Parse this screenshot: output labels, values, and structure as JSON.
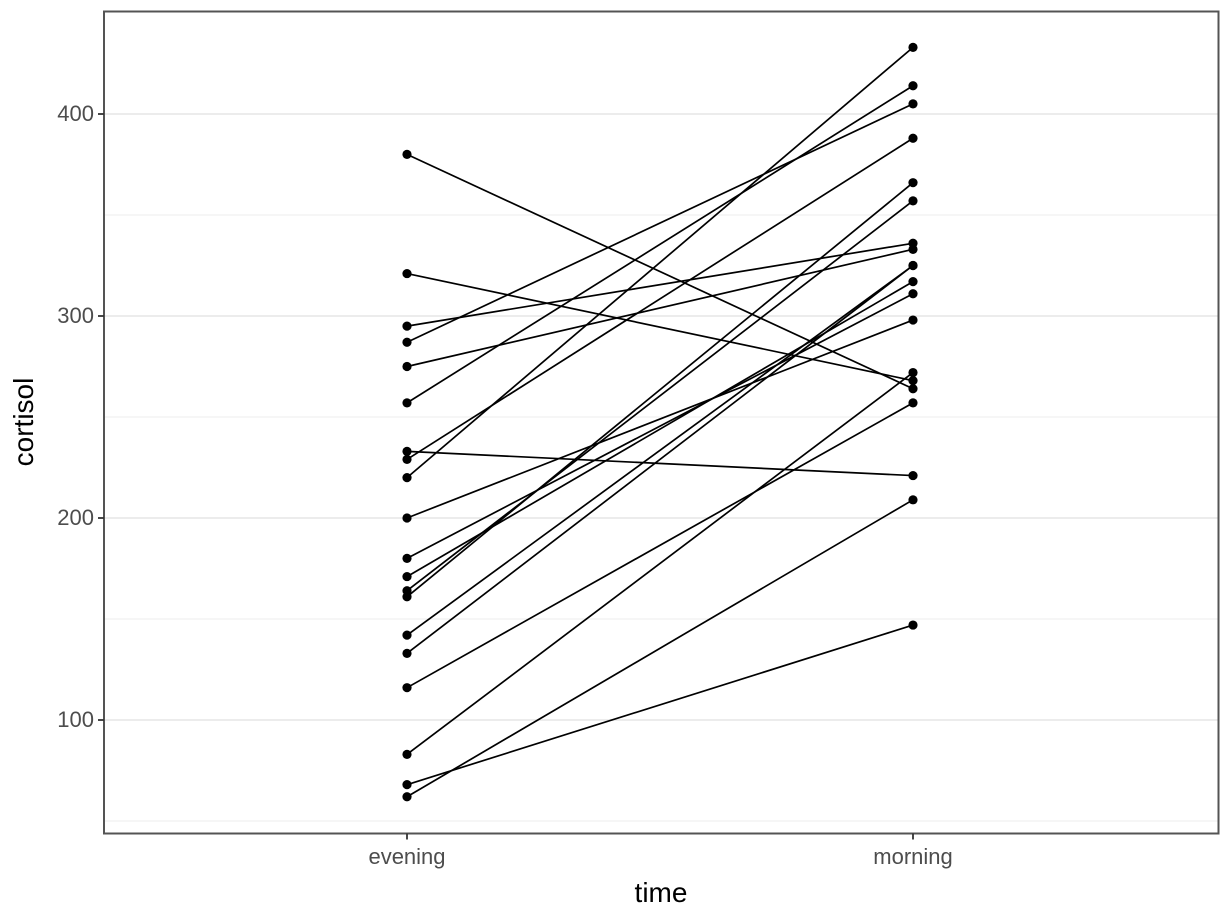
{
  "chart_data": {
    "type": "line",
    "subtype": "paired-observations-slopegraph",
    "title": "",
    "xlabel": "time",
    "ylabel": "cortisol",
    "categories": [
      "evening",
      "morning"
    ],
    "yticks": [
      100,
      200,
      300,
      400
    ],
    "yminor": [
      50,
      150,
      250,
      350
    ],
    "ylim": [
      43,
      451
    ],
    "grid": true,
    "legend": "none",
    "series": [
      {
        "name": "pair-01",
        "values": [
          380,
          264
        ]
      },
      {
        "name": "pair-02",
        "values": [
          321,
          268
        ]
      },
      {
        "name": "pair-03",
        "values": [
          295,
          336
        ]
      },
      {
        "name": "pair-04",
        "values": [
          287,
          405
        ]
      },
      {
        "name": "pair-05",
        "values": [
          275,
          333
        ]
      },
      {
        "name": "pair-06",
        "values": [
          257,
          414
        ]
      },
      {
        "name": "pair-07",
        "values": [
          233,
          221
        ]
      },
      {
        "name": "pair-08",
        "values": [
          229,
          388
        ]
      },
      {
        "name": "pair-09",
        "values": [
          220,
          433
        ]
      },
      {
        "name": "pair-10",
        "values": [
          200,
          298
        ]
      },
      {
        "name": "pair-11",
        "values": [
          180,
          311
        ]
      },
      {
        "name": "pair-12",
        "values": [
          171,
          317
        ]
      },
      {
        "name": "pair-13",
        "values": [
          164,
          357
        ]
      },
      {
        "name": "pair-14",
        "values": [
          161,
          366
        ]
      },
      {
        "name": "pair-15",
        "values": [
          142,
          325
        ]
      },
      {
        "name": "pair-16",
        "values": [
          133,
          325
        ]
      },
      {
        "name": "pair-17",
        "values": [
          116,
          257
        ]
      },
      {
        "name": "pair-18",
        "values": [
          83,
          272
        ]
      },
      {
        "name": "pair-19",
        "values": [
          68,
          147
        ]
      },
      {
        "name": "pair-20",
        "values": [
          62,
          209
        ]
      }
    ]
  },
  "colors": {
    "background": "#ffffff",
    "panel_fill": "#ffffff",
    "panel_border": "#545454",
    "grid_major": "#e9e9e9",
    "grid_minor": "#f0f0f0",
    "tick_mark": "#333333",
    "tick_label": "#4d4d4d",
    "axis_title": "#000000",
    "data": "#000000"
  }
}
